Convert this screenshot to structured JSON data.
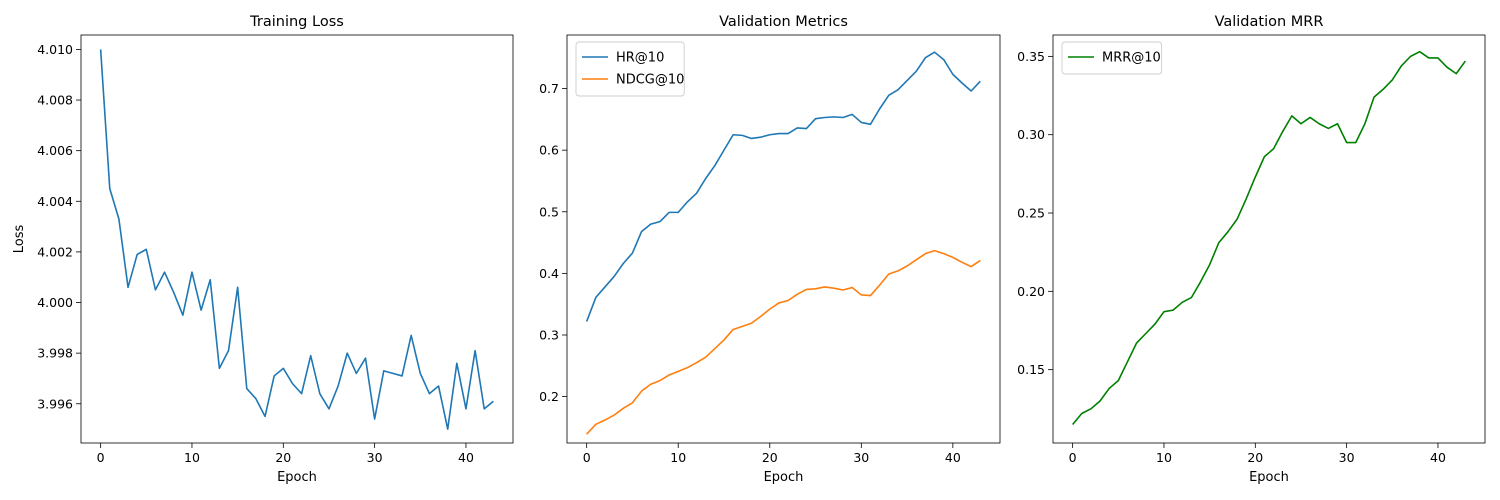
{
  "chart_data": [
    {
      "type": "line",
      "title": "Training Loss",
      "xlabel": "Epoch",
      "ylabel": "Loss",
      "xlim": [
        -2.15,
        45.15
      ],
      "ylim": [
        3.99445,
        4.01057
      ],
      "xticks": [
        0,
        10,
        20,
        30,
        40
      ],
      "yticks": [
        3.996,
        3.998,
        4.0,
        4.002,
        4.004,
        4.006,
        4.008,
        4.01
      ],
      "ytick_decimals": 3,
      "legend": null,
      "series": [
        {
          "color": "#1f77b4",
          "x": [
            0,
            1,
            2,
            3,
            4,
            5,
            6,
            7,
            8,
            9,
            10,
            11,
            12,
            13,
            14,
            15,
            16,
            17,
            18,
            19,
            20,
            21,
            22,
            23,
            24,
            25,
            26,
            27,
            28,
            29,
            30,
            31,
            32,
            33,
            34,
            35,
            36,
            37,
            38,
            39,
            40,
            41,
            42,
            43
          ],
          "values": [
            4.01,
            4.0045,
            4.0033,
            4.0006,
            4.0019,
            4.0021,
            4.0005,
            4.0012,
            4.0004,
            3.9995,
            4.0012,
            3.9997,
            4.0009,
            3.9974,
            3.9981,
            4.0006,
            3.9966,
            3.9962,
            3.9955,
            3.9971,
            3.9974,
            3.9968,
            3.9964,
            3.9979,
            3.9964,
            3.9958,
            3.9967,
            3.998,
            3.9972,
            3.9978,
            3.9954,
            3.9973,
            3.9972,
            3.9971,
            3.9987,
            3.9972,
            3.9964,
            3.9967,
            3.995,
            3.9976,
            3.9958,
            3.9981,
            3.9958,
            3.9961
          ]
        }
      ]
    },
    {
      "type": "line",
      "title": "Validation Metrics",
      "xlabel": "Epoch",
      "ylabel": "",
      "xlim": [
        -2.15,
        45.15
      ],
      "ylim": [
        0.1247,
        0.7869
      ],
      "xticks": [
        0,
        10,
        20,
        30,
        40
      ],
      "yticks": [
        0.2,
        0.3,
        0.4,
        0.5,
        0.6,
        0.7
      ],
      "ytick_decimals": 1,
      "legend": "top-left",
      "series": [
        {
          "name": "HR@10",
          "color": "#1f77b4",
          "x": [
            0,
            1,
            2,
            3,
            4,
            5,
            6,
            7,
            8,
            9,
            10,
            11,
            12,
            13,
            14,
            15,
            16,
            17,
            18,
            19,
            20,
            21,
            22,
            23,
            24,
            25,
            26,
            27,
            28,
            29,
            30,
            31,
            32,
            33,
            34,
            35,
            36,
            37,
            38,
            39,
            40,
            41,
            42,
            43
          ],
          "values": [
            0.322,
            0.361,
            0.378,
            0.395,
            0.416,
            0.433,
            0.468,
            0.48,
            0.484,
            0.499,
            0.499,
            0.516,
            0.53,
            0.554,
            0.575,
            0.6,
            0.625,
            0.624,
            0.619,
            0.621,
            0.625,
            0.627,
            0.627,
            0.636,
            0.635,
            0.651,
            0.653,
            0.654,
            0.653,
            0.658,
            0.645,
            0.642,
            0.667,
            0.689,
            0.698,
            0.713,
            0.728,
            0.75,
            0.759,
            0.747,
            0.723,
            0.709,
            0.696,
            0.712
          ]
        },
        {
          "name": "NDCG@10",
          "color": "#ff7f0e",
          "x": [
            0,
            1,
            2,
            3,
            4,
            5,
            6,
            7,
            8,
            9,
            10,
            11,
            12,
            13,
            14,
            15,
            16,
            17,
            18,
            19,
            20,
            21,
            22,
            23,
            24,
            25,
            26,
            27,
            28,
            29,
            30,
            31,
            32,
            33,
            34,
            35,
            36,
            37,
            38,
            39,
            40,
            41,
            42,
            43
          ],
          "values": [
            0.139,
            0.155,
            0.162,
            0.17,
            0.181,
            0.19,
            0.209,
            0.22,
            0.226,
            0.235,
            0.241,
            0.247,
            0.255,
            0.264,
            0.278,
            0.292,
            0.309,
            0.314,
            0.319,
            0.33,
            0.342,
            0.352,
            0.356,
            0.366,
            0.374,
            0.375,
            0.378,
            0.376,
            0.373,
            0.377,
            0.365,
            0.364,
            0.381,
            0.399,
            0.404,
            0.412,
            0.422,
            0.432,
            0.437,
            0.432,
            0.426,
            0.418,
            0.411,
            0.421
          ]
        }
      ]
    },
    {
      "type": "line",
      "title": "Validation MRR",
      "xlabel": "Epoch",
      "ylabel": "",
      "xlim": [
        -2.15,
        45.15
      ],
      "ylim": [
        0.10317,
        0.36365
      ],
      "xticks": [
        0,
        10,
        20,
        30,
        40
      ],
      "yticks": [
        0.15,
        0.2,
        0.25,
        0.3,
        0.35
      ],
      "ytick_decimals": 2,
      "legend": "top-left",
      "series": [
        {
          "name": "MRR@10",
          "color": "#008000",
          "x": [
            0,
            1,
            2,
            3,
            4,
            5,
            6,
            7,
            8,
            9,
            10,
            11,
            12,
            13,
            14,
            15,
            16,
            17,
            18,
            19,
            20,
            21,
            22,
            23,
            24,
            25,
            26,
            27,
            28,
            29,
            30,
            31,
            32,
            33,
            34,
            35,
            36,
            37,
            38,
            39,
            40,
            41,
            42,
            43
          ],
          "values": [
            0.115,
            0.122,
            0.125,
            0.13,
            0.138,
            0.143,
            0.155,
            0.167,
            0.173,
            0.179,
            0.187,
            0.188,
            0.193,
            0.196,
            0.206,
            0.217,
            0.231,
            0.238,
            0.246,
            0.259,
            0.273,
            0.286,
            0.291,
            0.302,
            0.312,
            0.307,
            0.311,
            0.307,
            0.304,
            0.307,
            0.295,
            0.295,
            0.307,
            0.324,
            0.329,
            0.335,
            0.344,
            0.35,
            0.353,
            0.349,
            0.349,
            0.343,
            0.339,
            0.347
          ]
        }
      ]
    }
  ]
}
